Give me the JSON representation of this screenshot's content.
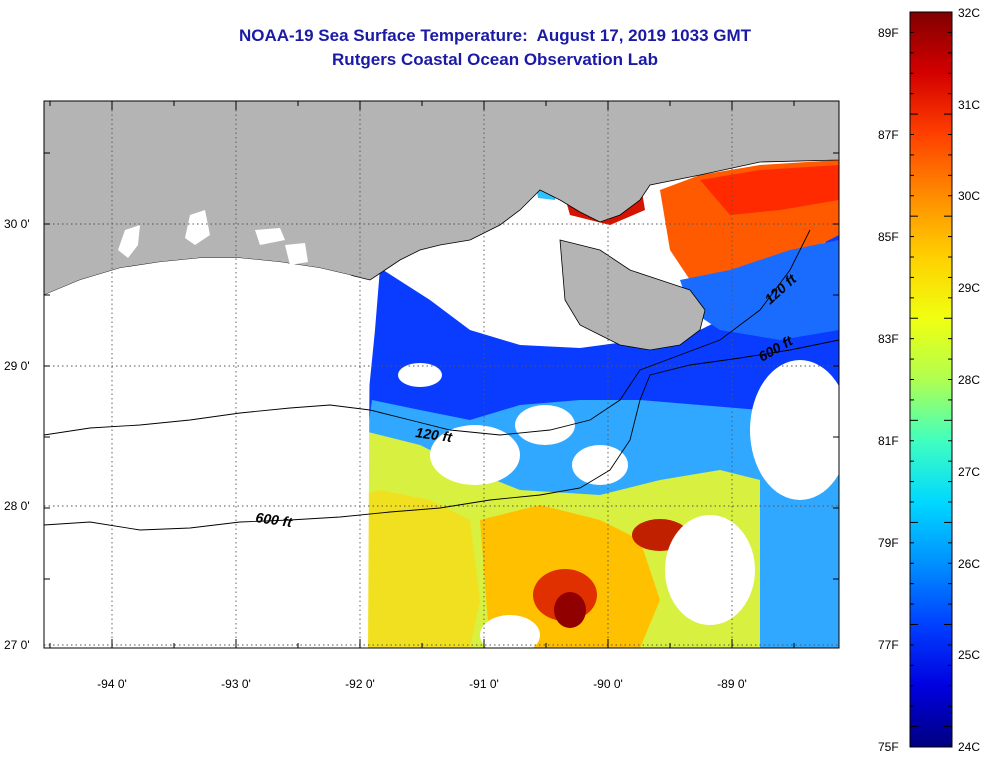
{
  "header": {
    "title": "NOAA-19 Sea Surface Temperature:  August 17, 2019 1033 GMT",
    "subtitle": "Rutgers Coastal Ocean Observation Lab"
  },
  "axes": {
    "lon_labels": [
      "-94 0'",
      "-93 0'",
      "-92 0'",
      "-91 0'",
      "-90 0'",
      "-89 0'"
    ],
    "lat_labels": [
      "30 0'",
      "29 0'",
      "28 0'",
      "27 0'"
    ]
  },
  "contours": {
    "label_120_west": "120 ft",
    "label_600_west": "600 ft",
    "label_120_east": "120 ft",
    "label_600_east": "600 ft"
  },
  "colorbar": {
    "fahrenheit_labels": [
      "89F",
      "87F",
      "85F",
      "83F",
      "81F",
      "79F",
      "77F",
      "75F"
    ],
    "celsius_labels": [
      "32C",
      "31C",
      "30C",
      "29C",
      "28C",
      "27C",
      "26C",
      "25C",
      "24C"
    ],
    "gradient_colors": [
      "#800000",
      "#d40000",
      "#ff4000",
      "#ff8c00",
      "#ffd000",
      "#f0ff10",
      "#b0ff50",
      "#40ffc0",
      "#00d8ff",
      "#0090ff",
      "#0040ff",
      "#0000e0",
      "#000080"
    ]
  },
  "colors": {
    "land": "#b4b4b4",
    "title": "#1a1aa6",
    "no_data": "#ffffff"
  }
}
